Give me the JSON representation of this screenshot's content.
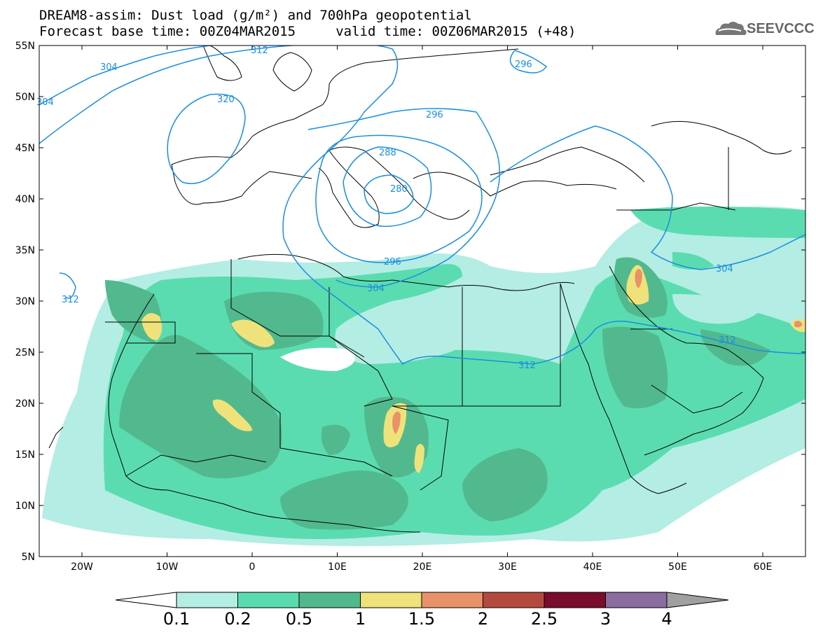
{
  "title": {
    "line1": "DREAM8-assim: Dust load (g/m²) and 700hPa geopotential",
    "line2": "Forecast base time: 00Z04MAR2015     valid time: 00Z06MAR2015 (+48)"
  },
  "logo": {
    "text": "SEEVCCC",
    "icon": "cloud-logo-icon"
  },
  "axes": {
    "lat_labels": [
      "55N",
      "50N",
      "45N",
      "40N",
      "35N",
      "30N",
      "25N",
      "20N",
      "15N",
      "10N",
      "5N"
    ],
    "lon_labels": [
      "20W",
      "10W",
      "0",
      "10E",
      "20E",
      "30E",
      "40E",
      "50E",
      "60E"
    ]
  },
  "contour_labels": [
    "312",
    "304",
    "304",
    "320",
    "296",
    "296",
    "288",
    "280",
    "296",
    "304",
    "304",
    "312",
    "312",
    "312"
  ],
  "colorbar": {
    "labels": [
      "0.1",
      "0.2",
      "0.5",
      "1",
      "1.5",
      "2",
      "2.5",
      "3",
      "4"
    ],
    "colors": [
      "#b4ede3",
      "#5bdcb0",
      "#52b98e",
      "#f0e27a",
      "#e8926a",
      "#b44a3e",
      "#7a0d2c",
      "#8a6d9e"
    ],
    "extend_low_color": "#ffffff",
    "extend_high_color": "#a0a0a0"
  },
  "colors": {
    "contour": "#1a8ee0",
    "border": "#000000"
  }
}
